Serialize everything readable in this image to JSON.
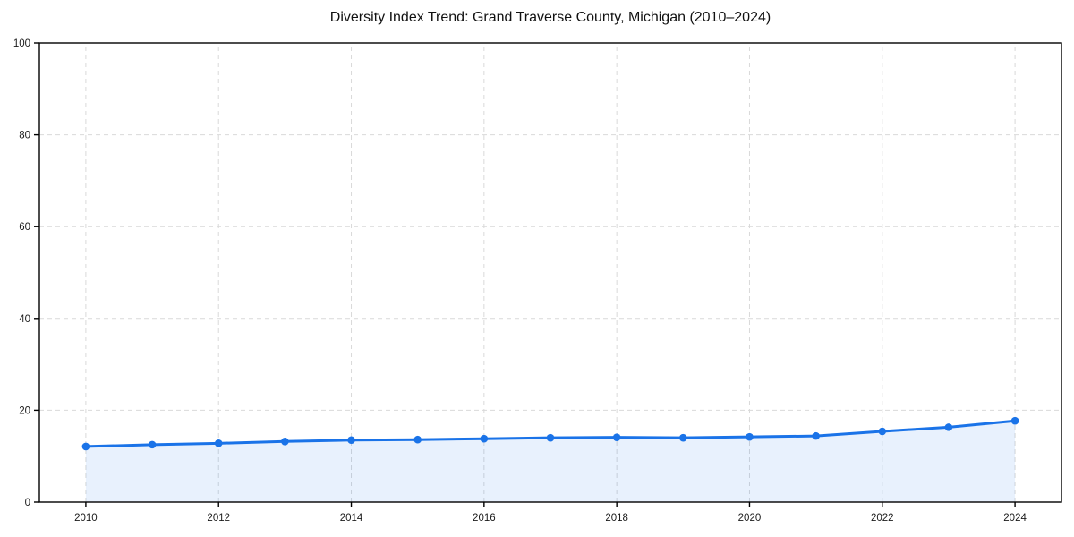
{
  "chart_data": {
    "type": "line",
    "title": "Diversity Index Trend: Grand Traverse County, Michigan (2010–2024)",
    "xlabel": "",
    "ylabel": "",
    "x": [
      2010,
      2011,
      2012,
      2013,
      2014,
      2015,
      2016,
      2017,
      2018,
      2019,
      2020,
      2021,
      2022,
      2023,
      2024
    ],
    "series": [
      {
        "name": "Diversity Index",
        "values": [
          12.1,
          12.5,
          12.8,
          13.2,
          13.5,
          13.6,
          13.8,
          14.0,
          14.1,
          14.0,
          14.2,
          14.4,
          15.4,
          16.3,
          17.7
        ]
      }
    ],
    "xticks": [
      2010,
      2012,
      2014,
      2016,
      2018,
      2020,
      2022,
      2024
    ],
    "yticks": [
      0,
      20,
      40,
      60,
      80,
      100
    ],
    "xlim": [
      2009.3,
      2024.7
    ],
    "ylim": [
      0,
      100
    ],
    "grid": true,
    "grid_style": "dashed",
    "legend_position": "none",
    "marker": "circle",
    "area_fill": true
  },
  "style": {
    "line_color": "#1a73e8",
    "marker_color": "#1a73e8",
    "area_fill_color": "rgba(26, 115, 232, 0.10)",
    "grid_color": "#d9d9d9",
    "spine_color": "#000000",
    "tick_color": "#000000",
    "tick_label_color": "#1a1a1a",
    "title_color": "#111111",
    "background_color": "#ffffff"
  }
}
